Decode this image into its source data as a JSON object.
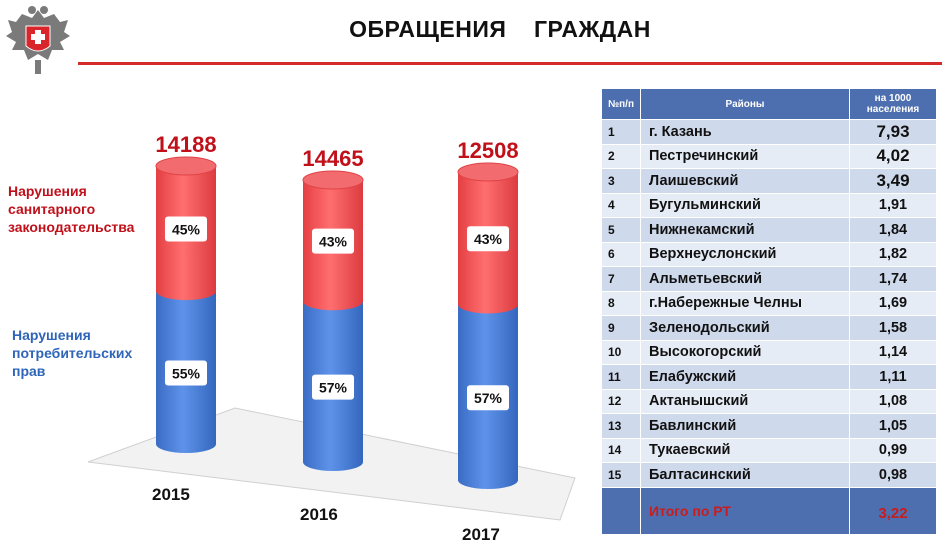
{
  "header": {
    "title": "ОБРАЩЕНИЯ    ГРАЖДАН",
    "accent_color": "#d42a2a"
  },
  "legend": {
    "sanitary": "Нарушения санитарного законодательства",
    "consumer": "Нарушения потребительских прав"
  },
  "chart_data": {
    "type": "bar",
    "categories": [
      "2015",
      "2016",
      "2017"
    ],
    "totals": [
      14188,
      14465,
      12508
    ],
    "series": [
      {
        "name": "Нарушения санитарного законодательства",
        "values": [
          45,
          43,
          43
        ],
        "color": "#ef4f52"
      },
      {
        "name": "Нарушения потребительских прав",
        "values": [
          55,
          57,
          57
        ],
        "color": "#4279d4"
      }
    ]
  },
  "table": {
    "headers": {
      "num": "№п/п",
      "region": "Районы",
      "rate": "на 1000 населения"
    },
    "rows": [
      {
        "num": "1",
        "name": "г. Казань",
        "value": "7,93"
      },
      {
        "num": "2",
        "name": "Пестречинский",
        "value": "4,02"
      },
      {
        "num": "3",
        "name": "Лаишевский",
        "value": "3,49"
      },
      {
        "num": "4",
        "name": "Бугульминский",
        "value": "1,91"
      },
      {
        "num": "5",
        "name": "Нижнекамский",
        "value": "1,84"
      },
      {
        "num": "6",
        "name": "Верхнеуслонский",
        "value": "1,82"
      },
      {
        "num": "7",
        "name": "Альметьевский",
        "value": "1,74"
      },
      {
        "num": "8",
        "name": "г.Набережные Челны",
        "value": "1,69"
      },
      {
        "num": "9",
        "name": "Зеленодольский",
        "value": "1,58"
      },
      {
        "num": "10",
        "name": "Высокогорский",
        "value": "1,14"
      },
      {
        "num": "11",
        "name": "Елабужский",
        "value": "1,11"
      },
      {
        "num": "12",
        "name": "Актанышский",
        "value": "1,08"
      },
      {
        "num": "13",
        "name": "Бавлинский",
        "value": "1,05"
      },
      {
        "num": "14",
        "name": "Тукаевский",
        "value": "0,99"
      },
      {
        "num": "15",
        "name": "Балтасинский",
        "value": "0,98"
      }
    ],
    "total": {
      "label": "Итого по РТ",
      "value": "3,22"
    }
  }
}
